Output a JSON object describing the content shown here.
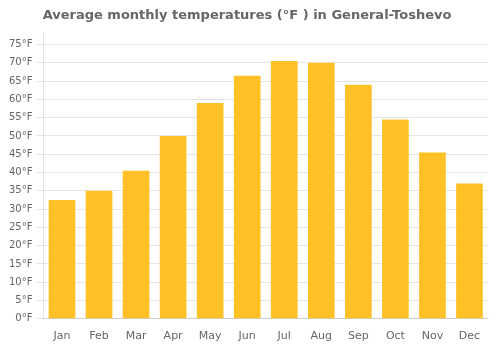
{
  "chart_data": {
    "type": "bar",
    "title": "Average monthly temperatures (°F ) in General-Toshevo",
    "categories": [
      "Jan",
      "Feb",
      "Mar",
      "Apr",
      "May",
      "Jun",
      "Jul",
      "Aug",
      "Sep",
      "Oct",
      "Nov",
      "Dec"
    ],
    "values": [
      32.5,
      35.0,
      40.5,
      50.0,
      59.0,
      66.5,
      70.5,
      70.0,
      64.0,
      54.5,
      45.5,
      37.0
    ],
    "color": "#FFC125",
    "ylim": [
      0,
      78
    ],
    "yticks": [
      {
        "value": 0,
        "label": "0°F"
      },
      {
        "value": 5,
        "label": "5°F"
      },
      {
        "value": 10,
        "label": "10°F"
      },
      {
        "value": 15,
        "label": "15°F"
      },
      {
        "value": 20,
        "label": "20°F"
      },
      {
        "value": 25,
        "label": "25°F"
      },
      {
        "value": 30,
        "label": "30°F"
      },
      {
        "value": 35,
        "label": "35°F"
      },
      {
        "value": 40,
        "label": "40°F"
      },
      {
        "value": 45,
        "label": "45°F"
      },
      {
        "value": 50,
        "label": "50°F"
      },
      {
        "value": 55,
        "label": "55°F"
      },
      {
        "value": 60,
        "label": "60°F"
      },
      {
        "value": 65,
        "label": "65°F"
      },
      {
        "value": 70,
        "label": "70°F"
      },
      {
        "value": 75,
        "label": "75°F"
      }
    ],
    "grid": true
  }
}
